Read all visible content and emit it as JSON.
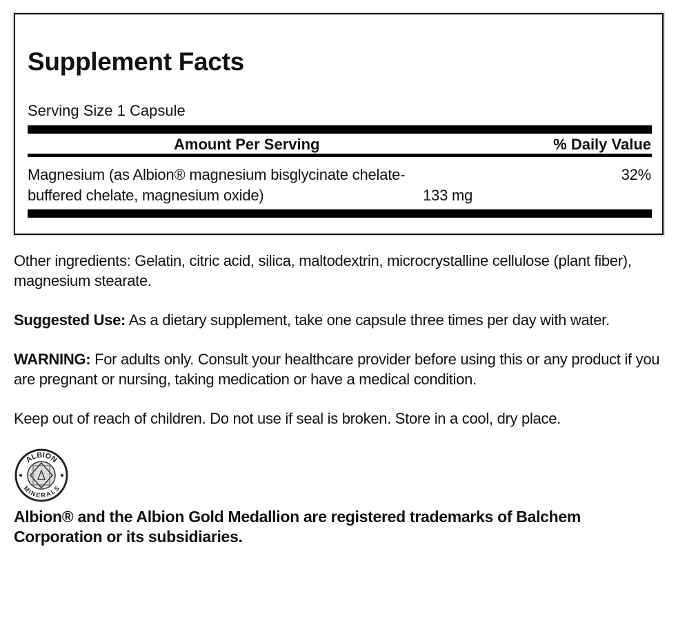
{
  "facts": {
    "title": "Supplement Facts",
    "serving_size": "Serving Size 1 Capsule",
    "header_amount": "Amount Per Serving",
    "header_dv": "% Daily Value",
    "rows": [
      {
        "line1": "Magnesium (as Albion® magnesium bisglycinate chelate-",
        "line2": "buffered chelate, magnesium oxide)",
        "amount": "133 mg",
        "dv": "32%"
      }
    ]
  },
  "other_ingredients": "Other ingredients: Gelatin, citric acid, silica, maltodextrin, microcrystalline cellulose (plant fiber), magnesium stearate.",
  "suggested_use": {
    "label": "Suggested Use:",
    "text": " As a dietary supplement, take one capsule three times per day with water."
  },
  "warning": {
    "label": "WARNING:",
    "text": " For adults only. Consult your healthcare provider before using this or any product if you are pregnant or nursing, taking medication or have a medical condition."
  },
  "storage": "Keep out of reach of children. Do not use if seal is broken. Store in a cool, dry place.",
  "logo": {
    "icon": "albion-minerals-medallion",
    "top_text": "ALBION",
    "bottom_text": "MINERALS"
  },
  "trademark": "Albion® and the Albion Gold Medallion are registered trademarks of Balchem Corporation or its subsidiaries."
}
